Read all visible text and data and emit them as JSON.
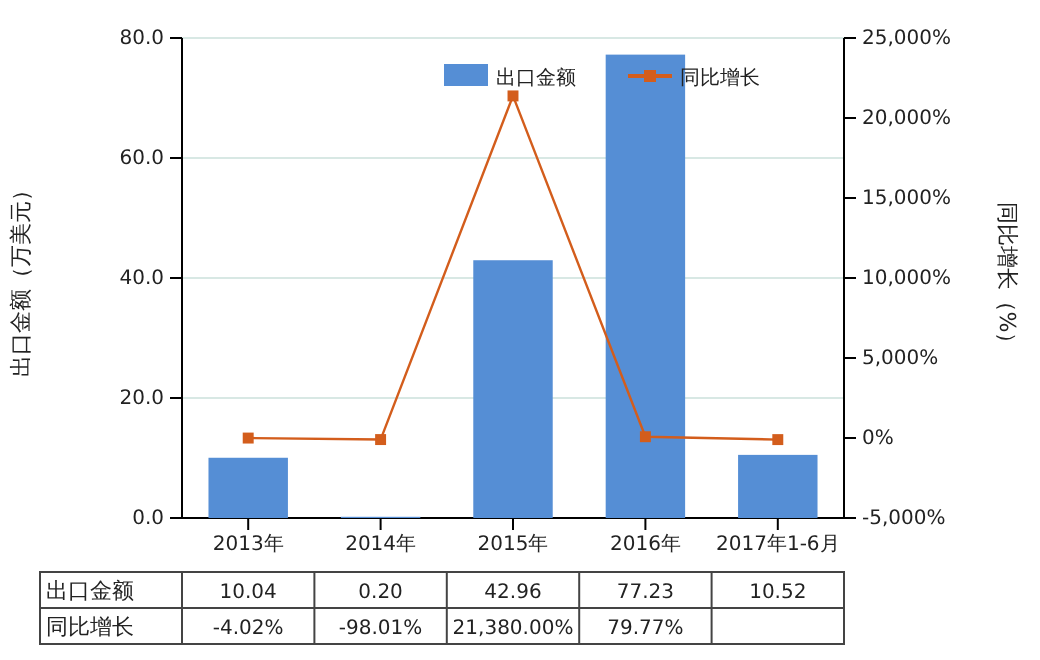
{
  "chart_data": {
    "type": "bar",
    "ylabel": "出口金额（万美元）",
    "y2label": "同比增长（%）",
    "categories": [
      "2013年",
      "2014年",
      "2015年",
      "2016年",
      "2017年1-6月"
    ],
    "series": [
      {
        "name": "出口金额",
        "color": "#558ed5",
        "values": [
          10.04,
          0.2,
          42.96,
          77.23,
          10.52
        ],
        "value_labels": [
          "10.04",
          "0.20",
          "42.96",
          "77.23",
          "10.52"
        ]
      },
      {
        "name": "同比增长",
        "type": "line",
        "axis": "y2",
        "color": "#d35d1c",
        "marker": "square",
        "values": [
          -4.02,
          -98.01,
          21380,
          79.77,
          -100
        ],
        "value_labels": [
          "-4.02%",
          "-98.01%",
          "21,380.00%",
          "79.77%",
          null
        ]
      }
    ],
    "ylim": [
      0,
      80
    ],
    "yticks": [
      {
        "value": 0,
        "label": "0.0"
      },
      {
        "value": 20,
        "label": "20.0"
      },
      {
        "value": 40,
        "label": "40.0"
      },
      {
        "value": 60,
        "label": "60.0"
      },
      {
        "value": 80,
        "label": "80.0"
      }
    ],
    "y2lim": [
      -5000,
      25000
    ],
    "y2ticks": [
      {
        "value": -5000,
        "label": "-5,000%"
      },
      {
        "value": 0,
        "label": "0%"
      },
      {
        "value": 5000,
        "label": "5,000%"
      },
      {
        "value": 10000,
        "label": "10,000%"
      },
      {
        "value": 15000,
        "label": "15,000%"
      },
      {
        "value": 20000,
        "label": "20,000%"
      },
      {
        "value": 25000,
        "label": "25,000%"
      }
    ],
    "grid": "y",
    "legend": "top right"
  }
}
